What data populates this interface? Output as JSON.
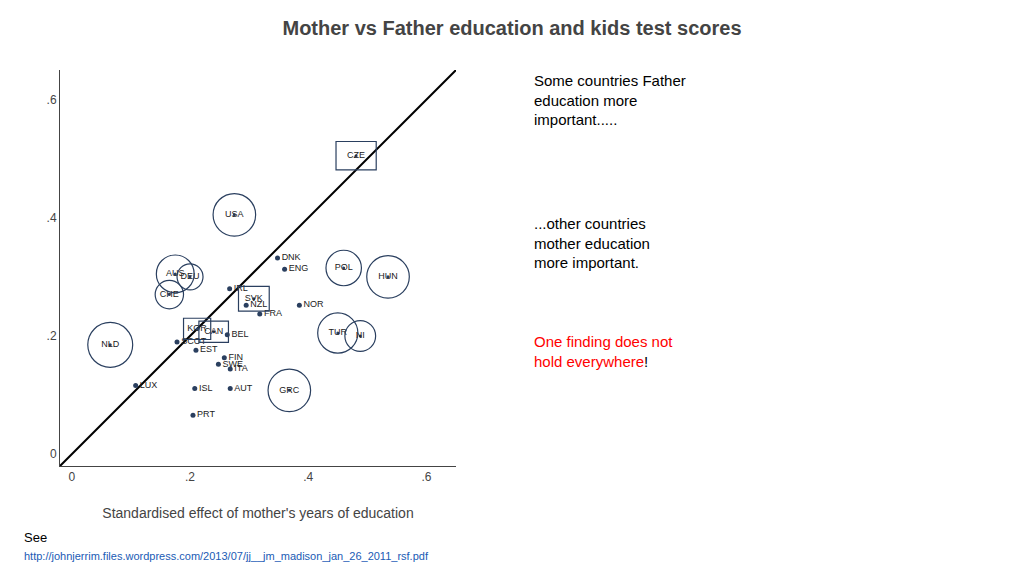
{
  "chart_data": {
    "type": "scatter",
    "title": "Mother vs Father education and kids test scores",
    "xlabel": "Standardised effect of mother's years of education",
    "xlim": [
      -0.02,
      0.65
    ],
    "ylim": [
      -0.02,
      0.65
    ],
    "xticks": [
      0,
      {
        "value": 0.2,
        "label": ".2"
      },
      {
        "value": 0.4,
        "label": ".4"
      },
      {
        "value": 0.6,
        "label": ".6"
      }
    ],
    "yticks": [
      0,
      {
        "value": 0.2,
        "label": ".2"
      },
      {
        "value": 0.4,
        "label": ".4"
      },
      {
        "value": 0.6,
        "label": ".6"
      }
    ],
    "grid": false,
    "series": [
      {
        "type": "line",
        "color": "#000000",
        "x": [
          -0.02,
          0.65
        ],
        "values": [
          -0.02,
          0.65
        ]
      },
      {
        "type": "scatter",
        "marker": "circle",
        "labels": [
          "NLD",
          "AUS",
          "CHE",
          "DEU",
          "USA",
          "HUN",
          "POL",
          "TUR",
          "NI",
          "GRC"
        ],
        "x": [
          0.065,
          0.175,
          0.165,
          0.2,
          0.275,
          0.535,
          0.46,
          0.45,
          0.488,
          0.368
        ],
        "values": [
          0.185,
          0.305,
          0.27,
          0.3,
          0.405,
          0.3,
          0.315,
          0.205,
          0.2,
          0.108
        ],
        "r": [
          0.038,
          0.032,
          0.024,
          0.022,
          0.036,
          0.036,
          0.03,
          0.034,
          0.026,
          0.036
        ]
      },
      {
        "type": "scatter",
        "marker": "square",
        "labels": [
          "CZE",
          "SVK",
          "KOR",
          "CAN"
        ],
        "x": [
          0.481,
          0.308,
          0.212,
          0.24
        ],
        "values": [
          0.505,
          0.263,
          0.212,
          0.207
        ],
        "w": [
          0.068,
          0.052,
          0.046,
          0.05
        ],
        "h": [
          0.048,
          0.042,
          0.036,
          0.036
        ]
      },
      {
        "type": "scatter",
        "marker": "dot",
        "labels": [
          "ENG",
          "DNK",
          "IRL",
          "NZL",
          "NOR",
          "FRA",
          "BEL",
          "SCOT",
          "EST",
          "FIN",
          "SWE",
          "ITA",
          "LUX",
          "ISL",
          "AUT",
          "PRT"
        ],
        "x": [
          0.36,
          0.348,
          0.267,
          0.295,
          0.385,
          0.318,
          0.263,
          0.178,
          0.21,
          0.258,
          0.248,
          0.268,
          0.108,
          0.208,
          0.268,
          0.205
        ],
        "values": [
          0.313,
          0.332,
          0.28,
          0.252,
          0.252,
          0.237,
          0.202,
          0.19,
          0.176,
          0.163,
          0.152,
          0.144,
          0.116,
          0.111,
          0.111,
          0.066
        ]
      }
    ],
    "annotations": [
      [
        {
          "text": "Some countries Father\neducation more\nimportant....."
        }
      ],
      [
        {
          "text": "...other countries\nmother education\nmore important."
        }
      ],
      [
        {
          "text": "One finding does not\nhold everywhere",
          "color": "#ff0000"
        },
        {
          "text": "!"
        }
      ],
      [
        {
          "text": "See"
        }
      ],
      [
        {
          "text": "http://johnjerrim.files.wordpress.com/2013/07/jj__jm_madison_jan_26_2011_rsf.pdf",
          "color": "#1a5bb5"
        }
      ]
    ]
  }
}
